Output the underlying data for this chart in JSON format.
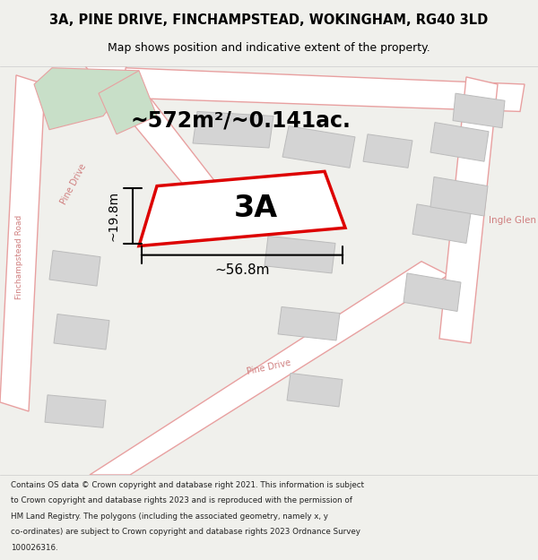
{
  "title_line1": "3A, PINE DRIVE, FINCHAMPSTEAD, WOKINGHAM, RG40 3LD",
  "title_line2": "Map shows position and indicative extent of the property.",
  "area_text": "~572m²/~0.141ac.",
  "label_3A": "3A",
  "dim_width": "~56.8m",
  "dim_height": "~19.8m",
  "footer_lines": [
    "Contains OS data © Crown copyright and database right 2021. This information is subject",
    "to Crown copyright and database rights 2023 and is reproduced with the permission of",
    "HM Land Registry. The polygons (including the associated geometry, namely x, y",
    "co-ordinates) are subject to Crown copyright and database rights 2023 Ordnance Survey",
    "100026316."
  ],
  "bg_color": "#f0f0ec",
  "map_bg": "#ffffff",
  "road_fill": "#ffffff",
  "road_stroke": "#e8a0a0",
  "building_fill": "#d4d4d4",
  "building_stroke": "#bbbbbb",
  "green_fill": "#c8dfc8",
  "plot_stroke": "#dd0000",
  "plot_fill": "#ffffff",
  "dim_line_color": "#000000",
  "text_color": "#000000",
  "road_label_color": "#d08080",
  "footer_color": "#222222"
}
